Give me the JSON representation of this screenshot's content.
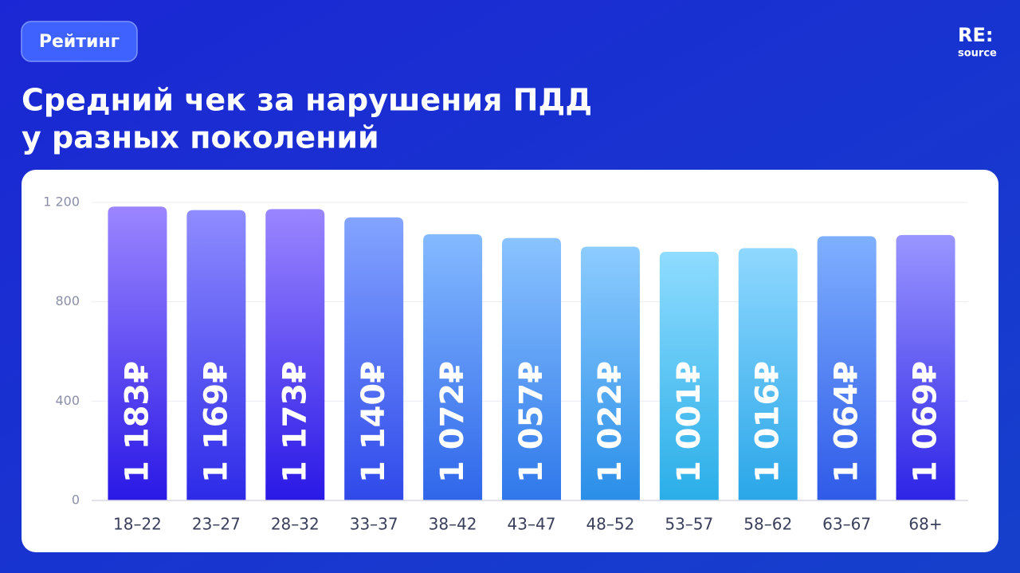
{
  "header": {
    "badge": "Рейтинг",
    "logo_main": "RE:",
    "logo_sub": "source"
  },
  "chart_data": {
    "type": "bar",
    "title_lines": [
      "Средний чек за нарушения ПДД",
      "у разных поколений"
    ],
    "categories": [
      "18–22",
      "23–27",
      "28–32",
      "33–37",
      "38–42",
      "43–47",
      "48–52",
      "53–57",
      "58–62",
      "63–67",
      "68+"
    ],
    "values": [
      1183,
      1169,
      1173,
      1140,
      1072,
      1057,
      1022,
      1001,
      1016,
      1064,
      1069
    ],
    "value_labels": [
      "1 183₽",
      "1 169₽",
      "1 173₽",
      "1 140₽",
      "1 072₽",
      "1 057₽",
      "1 022₽",
      "1 001₽",
      "1 016₽",
      "1 064₽",
      "1 069₽"
    ],
    "colors": [
      [
        "#9b86ff",
        "#2a18e6"
      ],
      [
        "#8f8cff",
        "#2d2ae8"
      ],
      [
        "#9a86ff",
        "#2a18e6"
      ],
      [
        "#83a4ff",
        "#2f49ea"
      ],
      [
        "#84baff",
        "#2f66ea"
      ],
      [
        "#8ac3ff",
        "#2f78ea"
      ],
      [
        "#8dccff",
        "#2a8ee8"
      ],
      [
        "#8fdcff",
        "#2aaee8"
      ],
      [
        "#8fd8ff",
        "#2aa6e8"
      ],
      [
        "#7fb0ff",
        "#2e5ae8"
      ],
      [
        "#9a96ff",
        "#2d24e6"
      ]
    ],
    "ylim": [
      0,
      1200
    ],
    "yticks": [
      0,
      400,
      800,
      {
        "value": 1200,
        "label": "1 200"
      }
    ],
    "grid": true
  }
}
